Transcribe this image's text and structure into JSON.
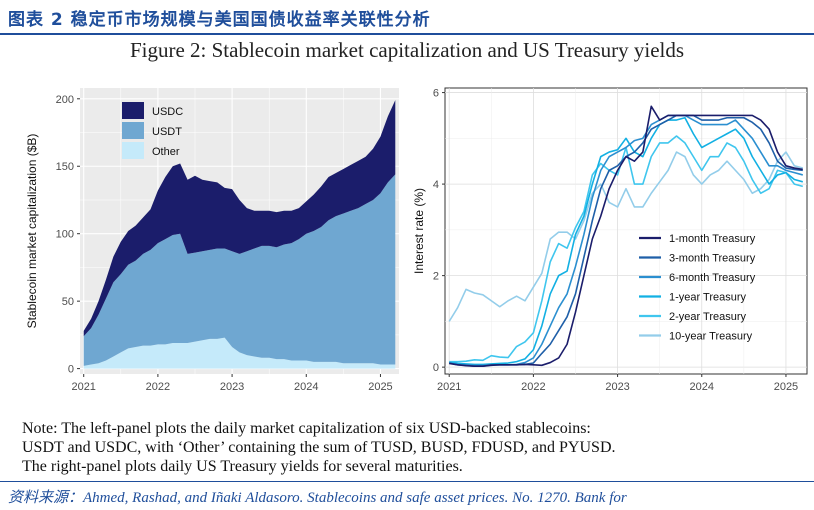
{
  "header": {
    "title": "图表 2 稳定币市场规模与美国国债收益率关联性分析"
  },
  "figure": {
    "title": "Figure 2: Stablecoin market capitalization and US Treasury yields"
  },
  "note": {
    "line1": "Note: The left-panel plots the daily market capitalization of six USD-backed stablecoins:",
    "line2": "USDT and USDC, with ‘Other’ containing the sum of TUSD, BUSD, FDUSD, and PYUSD.",
    "line3": "The right-panel plots daily US Treasury yields for several maturities."
  },
  "source": "资料来源：Ahmed, Rashad, and Iñaki Aldasoro. Stablecoins and safe asset prices. No. 1270. Bank for",
  "chart_data": [
    {
      "type": "area",
      "stacked": true,
      "title": "",
      "xlabel": "",
      "ylabel": "Stablecoin market capitalization ($B)",
      "xlim": [
        2020.95,
        2025.25
      ],
      "ylim": [
        -4,
        208
      ],
      "xticks": [
        "2021",
        "2022",
        "2023",
        "2024",
        "2025"
      ],
      "yticks": [
        "0",
        "50",
        "100",
        "150",
        "200"
      ],
      "legend_position": "top-left",
      "x": [
        2021.0,
        2021.1,
        2021.2,
        2021.3,
        2021.4,
        2021.5,
        2021.6,
        2021.7,
        2021.8,
        2021.9,
        2022.0,
        2022.1,
        2022.2,
        2022.3,
        2022.4,
        2022.5,
        2022.6,
        2022.7,
        2022.8,
        2022.9,
        2023.0,
        2023.1,
        2023.2,
        2023.3,
        2023.4,
        2023.5,
        2023.6,
        2023.7,
        2023.8,
        2023.9,
        2024.0,
        2024.1,
        2024.2,
        2024.3,
        2024.4,
        2024.5,
        2024.6,
        2024.7,
        2024.8,
        2024.9,
        2025.0,
        2025.1,
        2025.2
      ],
      "series": [
        {
          "name": "Other",
          "color": "#c5eafa",
          "values": [
            2,
            3,
            4,
            6,
            9,
            12,
            15,
            16,
            17,
            17,
            18,
            18,
            19,
            19,
            19,
            20,
            21,
            22,
            22,
            23,
            16,
            12,
            10,
            9,
            8,
            8,
            7,
            7,
            6,
            6,
            6,
            5,
            5,
            5,
            5,
            4,
            4,
            4,
            4,
            4,
            3,
            3,
            3
          ]
        },
        {
          "name": "USDT",
          "color": "#6fa7d1",
          "values": [
            22,
            27,
            36,
            46,
            55,
            58,
            62,
            64,
            68,
            71,
            75,
            78,
            80,
            81,
            66,
            66,
            66,
            66,
            67,
            66,
            71,
            73,
            77,
            80,
            83,
            83,
            83,
            85,
            87,
            90,
            94,
            97,
            100,
            105,
            108,
            111,
            113,
            115,
            118,
            121,
            127,
            135,
            141
          ]
        },
        {
          "name": "USDC",
          "color": "#1b1d6b",
          "values": [
            4,
            7,
            10,
            14,
            19,
            24,
            25,
            26,
            27,
            30,
            39,
            46,
            51,
            52,
            55,
            57,
            53,
            51,
            49,
            45,
            46,
            40,
            32,
            28,
            26,
            26,
            26,
            25,
            24,
            23,
            24,
            27,
            30,
            32,
            32,
            33,
            34,
            35,
            35,
            38,
            42,
            49,
            55
          ]
        }
      ]
    },
    {
      "type": "line",
      "title": "",
      "xlabel": "",
      "ylabel": "Interest rate (%)",
      "xlim": [
        2020.95,
        2025.25
      ],
      "ylim": [
        -0.15,
        6.1
      ],
      "xticks": [
        "2021",
        "2022",
        "2023",
        "2024",
        "2025"
      ],
      "yticks": [
        "0",
        "2",
        "4",
        "6"
      ],
      "legend_position": "bottom-right",
      "x": [
        2021.0,
        2021.1,
        2021.2,
        2021.3,
        2021.4,
        2021.5,
        2021.6,
        2021.7,
        2021.8,
        2021.9,
        2022.0,
        2022.1,
        2022.2,
        2022.3,
        2022.4,
        2022.5,
        2022.6,
        2022.7,
        2022.8,
        2022.9,
        2023.0,
        2023.1,
        2023.2,
        2023.3,
        2023.4,
        2023.5,
        2023.6,
        2023.7,
        2023.8,
        2023.9,
        2024.0,
        2024.1,
        2024.2,
        2024.3,
        2024.4,
        2024.5,
        2024.6,
        2024.7,
        2024.8,
        2024.9,
        2025.0,
        2025.1,
        2025.2
      ],
      "series": [
        {
          "name": "1-month Treasury",
          "color": "#1b1d6b",
          "values": [
            0.08,
            0.05,
            0.03,
            0.02,
            0.02,
            0.04,
            0.05,
            0.05,
            0.05,
            0.06,
            0.05,
            0.04,
            0.1,
            0.2,
            0.5,
            1.2,
            2.0,
            2.8,
            3.3,
            3.9,
            4.3,
            4.6,
            4.5,
            4.7,
            5.7,
            5.4,
            5.5,
            5.5,
            5.5,
            5.5,
            5.5,
            5.5,
            5.5,
            5.5,
            5.5,
            5.5,
            5.5,
            5.4,
            5.2,
            4.7,
            4.4,
            4.35,
            4.32
          ]
        },
        {
          "name": "3-month Treasury",
          "color": "#1f5fa8",
          "values": [
            0.09,
            0.05,
            0.04,
            0.02,
            0.02,
            0.05,
            0.05,
            0.05,
            0.05,
            0.06,
            0.09,
            0.3,
            0.5,
            0.8,
            1.1,
            1.6,
            2.4,
            3.2,
            3.9,
            4.3,
            4.4,
            4.6,
            4.7,
            4.9,
            5.2,
            5.3,
            5.4,
            5.5,
            5.5,
            5.5,
            5.4,
            5.4,
            5.4,
            5.45,
            5.45,
            5.45,
            5.35,
            5.2,
            4.9,
            4.5,
            4.35,
            4.32,
            4.3
          ]
        },
        {
          "name": "6-month Treasury",
          "color": "#2b8fd0",
          "values": [
            0.09,
            0.06,
            0.05,
            0.04,
            0.04,
            0.05,
            0.05,
            0.05,
            0.06,
            0.1,
            0.2,
            0.5,
            0.9,
            1.3,
            1.6,
            2.2,
            2.9,
            3.7,
            4.3,
            4.6,
            4.7,
            4.8,
            4.95,
            5.0,
            5.3,
            5.4,
            5.5,
            5.5,
            5.5,
            5.4,
            5.3,
            5.3,
            5.3,
            5.3,
            5.4,
            5.2,
            5.0,
            4.7,
            4.4,
            4.4,
            4.3,
            4.25,
            4.2
          ]
        },
        {
          "name": "1-year Treasury",
          "color": "#12b0e3",
          "values": [
            0.1,
            0.08,
            0.07,
            0.06,
            0.06,
            0.07,
            0.08,
            0.09,
            0.12,
            0.18,
            0.38,
            0.9,
            1.6,
            2.0,
            2.1,
            2.9,
            3.3,
            4.0,
            4.6,
            4.7,
            4.75,
            5.0,
            4.7,
            4.6,
            5.0,
            5.3,
            5.4,
            5.4,
            5.45,
            5.1,
            4.8,
            4.9,
            5.0,
            5.1,
            5.2,
            5.0,
            4.6,
            4.3,
            4.0,
            4.2,
            4.25,
            4.1,
            4.05
          ]
        },
        {
          "name": "2-year Treasury",
          "color": "#3fc6ee",
          "values": [
            0.12,
            0.12,
            0.13,
            0.16,
            0.15,
            0.25,
            0.22,
            0.21,
            0.45,
            0.55,
            0.75,
            1.45,
            2.3,
            2.7,
            2.6,
            3.05,
            3.4,
            4.2,
            4.45,
            4.3,
            4.2,
            4.8,
            4.0,
            4.0,
            4.6,
            4.9,
            4.9,
            5.05,
            4.9,
            4.6,
            4.3,
            4.6,
            4.6,
            4.9,
            4.8,
            4.5,
            4.1,
            3.8,
            3.9,
            4.3,
            4.25,
            4.0,
            3.95
          ]
        },
        {
          "name": "10-year Treasury",
          "color": "#93cdea",
          "values": [
            1.0,
            1.3,
            1.7,
            1.62,
            1.58,
            1.45,
            1.32,
            1.45,
            1.55,
            1.45,
            1.75,
            2.05,
            2.8,
            2.95,
            2.95,
            2.8,
            3.2,
            3.8,
            4.0,
            3.6,
            3.5,
            3.9,
            3.5,
            3.5,
            3.8,
            4.05,
            4.3,
            4.7,
            4.6,
            4.2,
            4.0,
            4.2,
            4.3,
            4.5,
            4.3,
            4.1,
            3.8,
            3.9,
            4.1,
            4.5,
            4.7,
            4.4,
            4.35
          ]
        }
      ]
    }
  ]
}
